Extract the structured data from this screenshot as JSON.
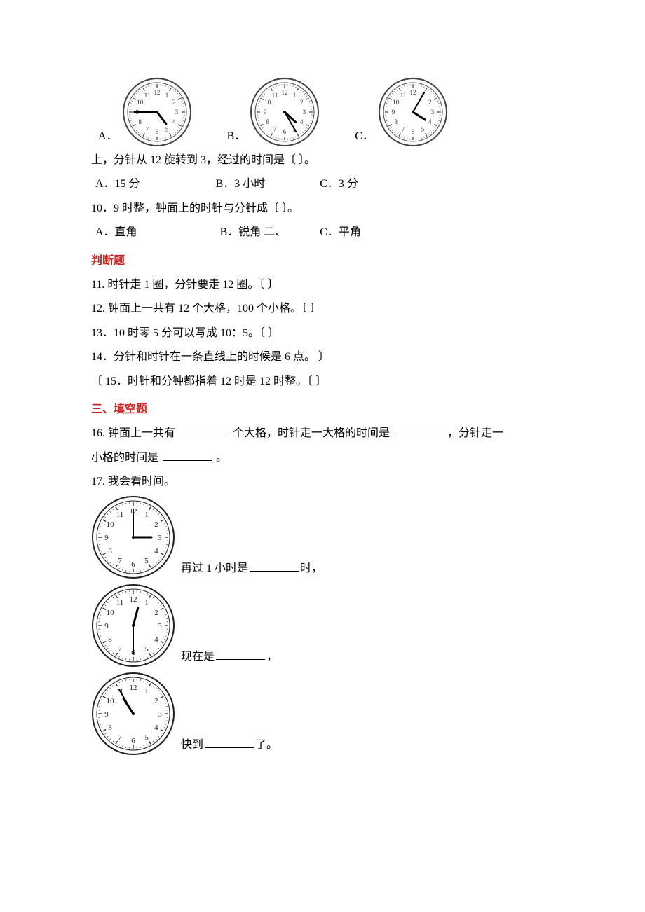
{
  "q8": {
    "optA": "A．",
    "optB": "B．",
    "optC": "C．",
    "clocks": [
      {
        "hour": 4,
        "minute": 45,
        "size": 100
      },
      {
        "hour": 4,
        "minute": 25,
        "size": 100
      },
      {
        "hour": 4,
        "minute": 5,
        "size": 100
      }
    ],
    "clock_style": {
      "outer_stroke": "#444444",
      "face_fill": "#ffffff",
      "num_color": "#333333",
      "num_fontsize": 9,
      "hour_hand_color": "#000000",
      "min_hand_color": "#000000",
      "tick_color": "#555555"
    }
  },
  "q9": {
    "text_line1": "上，分针从 12 旋转到 3，经过的时间是〔  〕。",
    "optA": "A．15 分",
    "optB": "B．3 小时",
    "optC": "C．3 分"
  },
  "q10": {
    "text": "10．9 时整，钟面上的时针与分针成〔    〕。",
    "optA": "A．直角",
    "optB": "B．锐角  二、",
    "optC": "C．平角"
  },
  "section2": "判断题",
  "q11": "11.  时针走 1 圈，分针要走 12 圈。〔    〕",
  "q12": "12.  钟面上一共有 12 个大格，100 个小格。〔    〕",
  "q13": "13．10 时零 5 分可以写成 10：5。〔    〕",
  "q14": "14．分针和时针在一条直线上的时候是 6 点。        〕",
  "q15": "〔  15．时针和分钟都指着 12 时是 12 时整。〔  〕",
  "section3": "三、填空题",
  "q16": {
    "pre": "16.  钟面上一共有",
    "mid1": "个大格，时针走一大格的时间是",
    "mid2": "，分针走一",
    "line2_pre": "小格的时间是",
    "line2_post": "。"
  },
  "q17": {
    "title": "17.  我会看时间。",
    "rows": [
      {
        "hour": 3,
        "minute": 0,
        "before": "",
        "mid": "再过 1 小时是",
        "after": "时，",
        "size": 120
      },
      {
        "hour": 12,
        "minute": 30,
        "before": "",
        "mid": "现在是",
        "after": "，",
        "size": 120
      },
      {
        "hour": 10,
        "minute": 55,
        "before": "",
        "mid": "快到",
        "after": "了。",
        "size": 120
      }
    ],
    "clock_style": {
      "outer_stroke": "#222222",
      "face_fill": "#ffffff",
      "num_color": "#222222",
      "num_fontsize": 11,
      "hour_hand_color": "#000000",
      "min_hand_color": "#000000",
      "tick_color": "#333333"
    }
  }
}
